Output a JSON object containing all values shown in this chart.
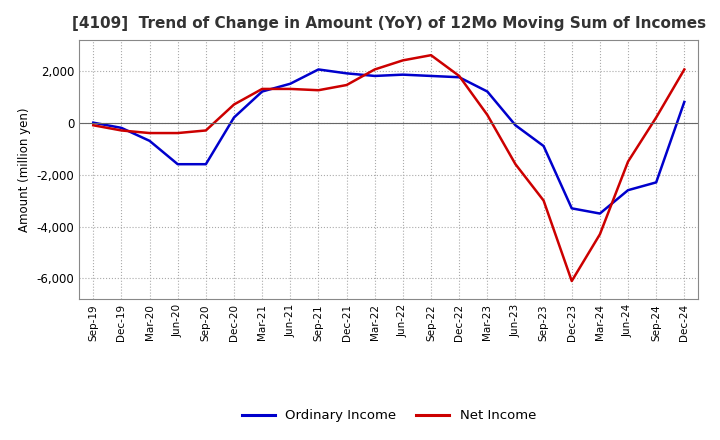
{
  "title": "[4109]  Trend of Change in Amount (YoY) of 12Mo Moving Sum of Incomes",
  "ylabel": "Amount (million yen)",
  "ylim": [
    -6800,
    3200
  ],
  "yticks": [
    -6000,
    -4000,
    -2000,
    0,
    2000
  ],
  "background_color": "#ffffff",
  "grid_color": "#aaaaaa",
  "ordinary_income_color": "#0000cc",
  "net_income_color": "#cc0000",
  "x_labels": [
    "Sep-19",
    "Dec-19",
    "Mar-20",
    "Jun-20",
    "Sep-20",
    "Dec-20",
    "Mar-21",
    "Jun-21",
    "Sep-21",
    "Dec-21",
    "Mar-22",
    "Jun-22",
    "Sep-22",
    "Dec-22",
    "Mar-23",
    "Jun-23",
    "Sep-23",
    "Dec-23",
    "Mar-24",
    "Jun-24",
    "Sep-24",
    "Dec-24"
  ],
  "ordinary_income": [
    0,
    -200,
    -700,
    -1600,
    -1600,
    200,
    1200,
    1500,
    2050,
    1900,
    1800,
    1850,
    1800,
    1750,
    1200,
    -100,
    -900,
    -3300,
    -3500,
    -2600,
    -2300,
    800
  ],
  "net_income": [
    -100,
    -300,
    -400,
    -400,
    -300,
    700,
    1300,
    1300,
    1250,
    1450,
    2050,
    2400,
    2600,
    1800,
    300,
    -1600,
    -3000,
    -6100,
    -4300,
    -1500,
    200,
    2050
  ],
  "legend_labels": [
    "Ordinary Income",
    "Net Income"
  ],
  "line_width": 1.8
}
